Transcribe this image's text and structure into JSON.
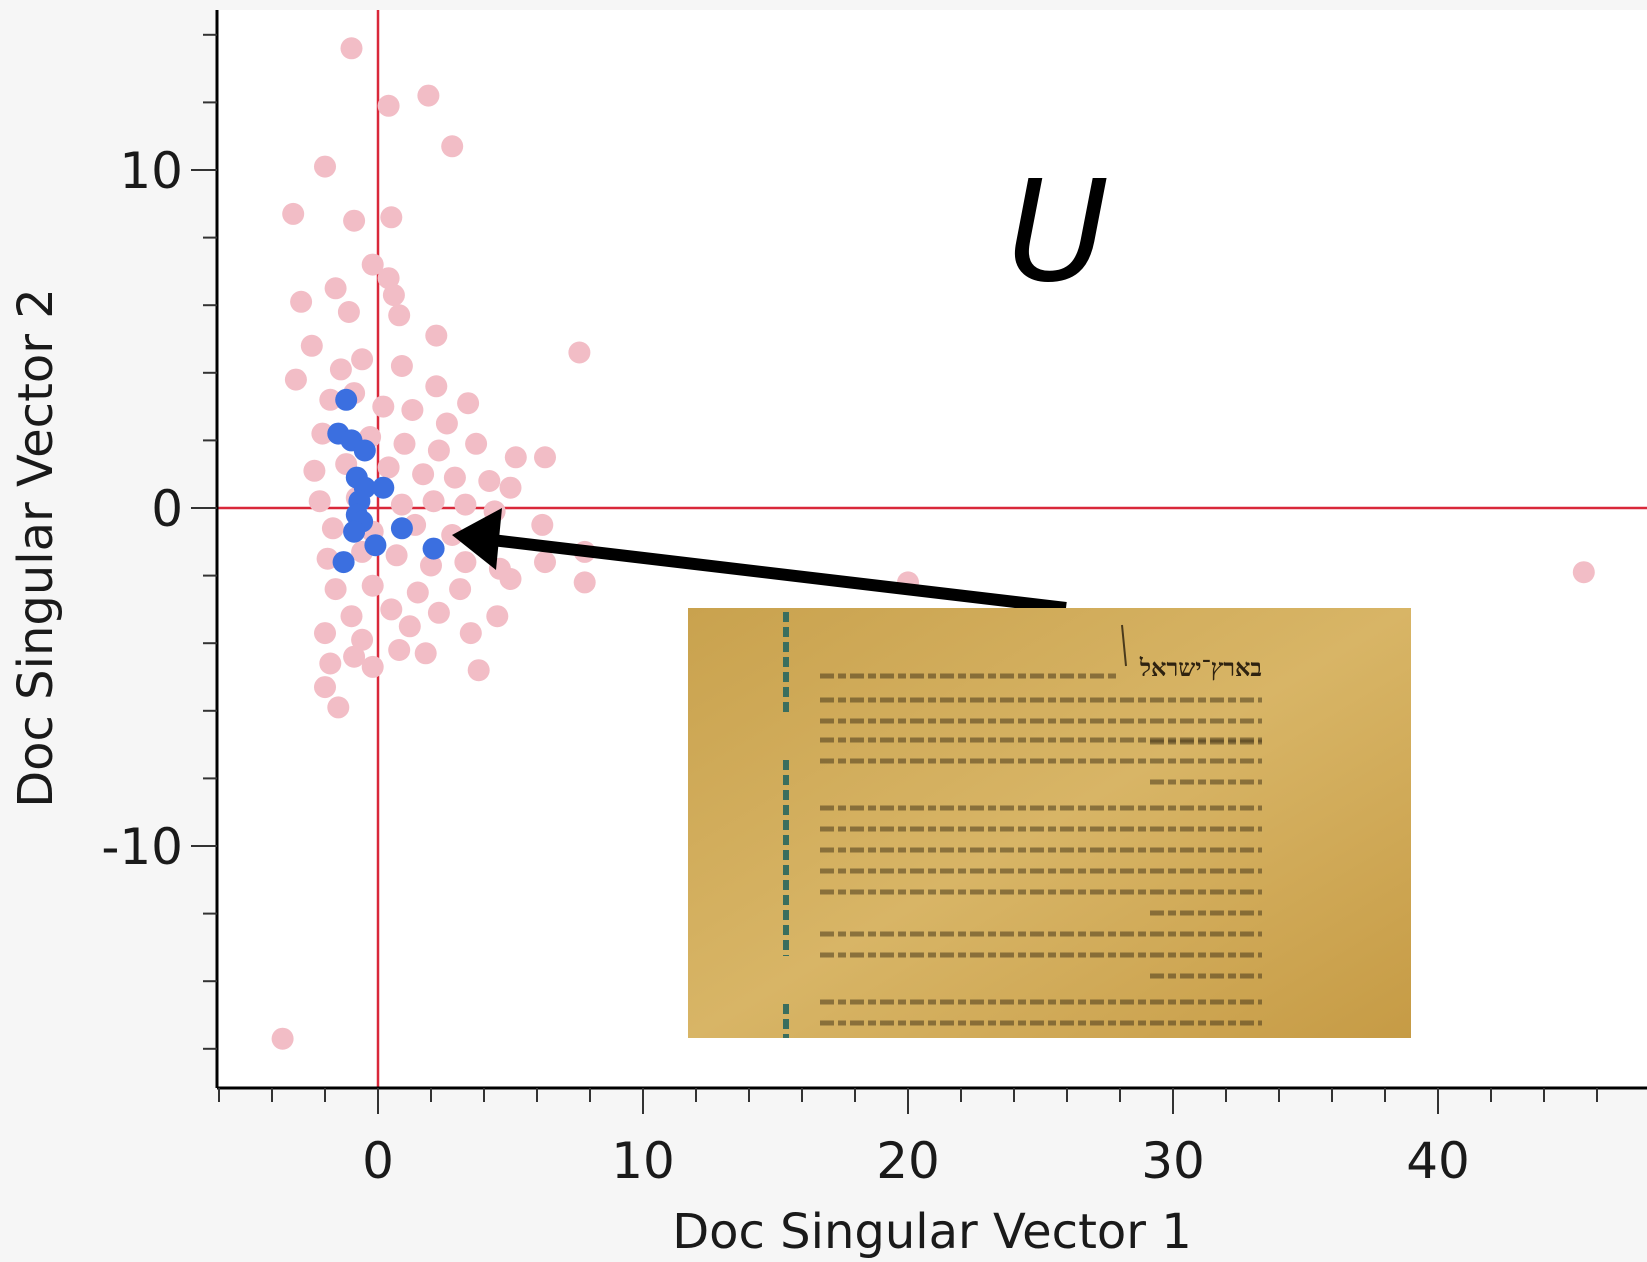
{
  "chart_data": {
    "type": "scatter",
    "title": "",
    "xlabel": "Doc Singular Vector 1",
    "ylabel": "Doc Singular Vector 2",
    "xlim": [
      -6,
      46
    ],
    "ylim": [
      -17.3,
      14.7
    ],
    "xticks": [
      0,
      10,
      20,
      30,
      40
    ],
    "yticks": [
      10,
      0,
      -10
    ],
    "x_tick_labels": [
      "0",
      "10",
      "20",
      "30",
      "40"
    ],
    "y_tick_labels": [
      "10",
      "0",
      "-10"
    ],
    "reference_lines": {
      "x": 0,
      "y": 0,
      "color": "#d9283a"
    },
    "annotation_text": "U",
    "series": [
      {
        "color": "#f2bdc6",
        "points": [
          [
            -1.0,
            13.6
          ],
          [
            0.4,
            11.9
          ],
          [
            1.9,
            12.2
          ],
          [
            2.8,
            10.7
          ],
          [
            -2.0,
            10.1
          ],
          [
            -3.2,
            8.7
          ],
          [
            -0.9,
            8.5
          ],
          [
            0.5,
            8.6
          ],
          [
            -0.2,
            7.2
          ],
          [
            0.4,
            6.8
          ],
          [
            -1.6,
            6.5
          ],
          [
            0.6,
            6.3
          ],
          [
            -2.9,
            6.1
          ],
          [
            -1.1,
            5.8
          ],
          [
            0.8,
            5.7
          ],
          [
            2.2,
            5.1
          ],
          [
            -2.5,
            4.8
          ],
          [
            7.6,
            4.6
          ],
          [
            -3.1,
            3.8
          ],
          [
            -1.4,
            4.1
          ],
          [
            -0.6,
            4.4
          ],
          [
            0.9,
            4.2
          ],
          [
            2.2,
            3.6
          ],
          [
            3.4,
            3.1
          ],
          [
            -1.8,
            3.2
          ],
          [
            -0.9,
            3.4
          ],
          [
            0.2,
            3.0
          ],
          [
            1.3,
            2.9
          ],
          [
            2.6,
            2.5
          ],
          [
            -2.1,
            2.2
          ],
          [
            -0.3,
            2.1
          ],
          [
            1.0,
            1.9
          ],
          [
            2.3,
            1.7
          ],
          [
            3.7,
            1.9
          ],
          [
            5.2,
            1.5
          ],
          [
            6.3,
            1.5
          ],
          [
            -2.4,
            1.1
          ],
          [
            -1.2,
            1.3
          ],
          [
            0.4,
            1.2
          ],
          [
            1.7,
            1.0
          ],
          [
            2.9,
            0.9
          ],
          [
            4.2,
            0.8
          ],
          [
            5.0,
            0.6
          ],
          [
            -2.2,
            0.2
          ],
          [
            -0.8,
            0.3
          ],
          [
            0.9,
            0.1
          ],
          [
            2.1,
            0.2
          ],
          [
            3.3,
            0.1
          ],
          [
            4.4,
            -0.1
          ],
          [
            -1.7,
            -0.6
          ],
          [
            -0.2,
            -0.7
          ],
          [
            1.4,
            -0.5
          ],
          [
            2.8,
            -0.8
          ],
          [
            4.0,
            -0.9
          ],
          [
            6.2,
            -0.5
          ],
          [
            -1.9,
            -1.5
          ],
          [
            -0.6,
            -1.3
          ],
          [
            0.7,
            -1.4
          ],
          [
            2.0,
            -1.7
          ],
          [
            3.3,
            -1.6
          ],
          [
            4.6,
            -1.8
          ],
          [
            6.3,
            -1.6
          ],
          [
            7.8,
            -1.3
          ],
          [
            -1.6,
            -2.4
          ],
          [
            -0.2,
            -2.3
          ],
          [
            1.5,
            -2.5
          ],
          [
            3.1,
            -2.4
          ],
          [
            5.0,
            -2.1
          ],
          [
            7.8,
            -2.2
          ],
          [
            20.0,
            -2.2
          ],
          [
            45.5,
            -1.9
          ],
          [
            -1.0,
            -3.2
          ],
          [
            0.5,
            -3.0
          ],
          [
            2.3,
            -3.1
          ],
          [
            4.5,
            -3.2
          ],
          [
            -2.0,
            -3.7
          ],
          [
            -0.6,
            -3.9
          ],
          [
            1.2,
            -3.5
          ],
          [
            3.5,
            -3.7
          ],
          [
            -0.9,
            -4.4
          ],
          [
            0.8,
            -4.2
          ],
          [
            1.8,
            -4.3
          ],
          [
            -1.8,
            -4.6
          ],
          [
            -0.2,
            -4.7
          ],
          [
            3.8,
            -4.8
          ],
          [
            -2.0,
            -5.3
          ],
          [
            -1.5,
            -5.9
          ],
          [
            -3.6,
            -15.7
          ]
        ]
      },
      {
        "color": "#3b6fe0",
        "points": [
          [
            -1.2,
            3.2
          ],
          [
            -1.5,
            2.2
          ],
          [
            -1.0,
            2.0
          ],
          [
            -0.5,
            1.7
          ],
          [
            -0.8,
            0.9
          ],
          [
            -0.5,
            0.6
          ],
          [
            0.2,
            0.6
          ],
          [
            -0.7,
            0.2
          ],
          [
            -0.8,
            -0.2
          ],
          [
            -0.6,
            -0.4
          ],
          [
            -0.9,
            -0.7
          ],
          [
            0.9,
            -0.6
          ],
          [
            -0.1,
            -1.1
          ],
          [
            2.1,
            -1.2
          ],
          [
            -1.3,
            -1.6
          ]
        ]
      }
    ]
  },
  "inset_document": {
    "heading": "בארץ־ישראל"
  }
}
